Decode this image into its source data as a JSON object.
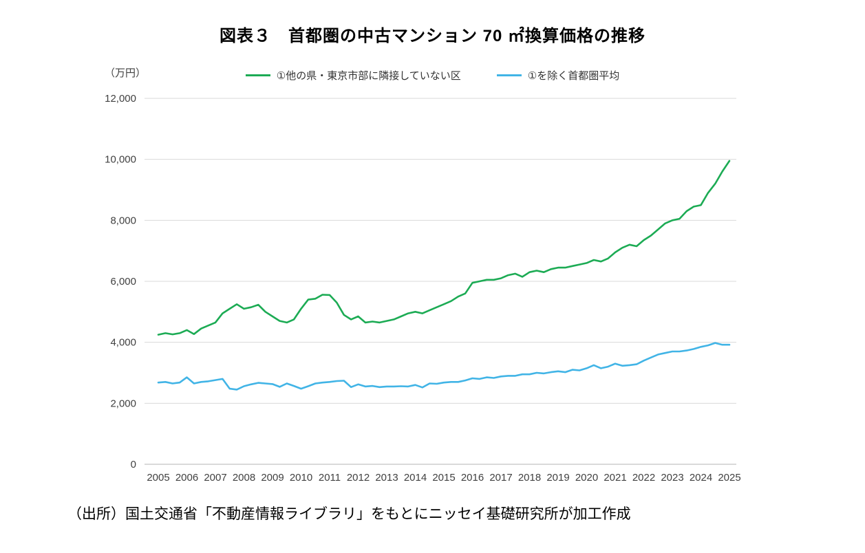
{
  "title": "図表３　首都圏の中古マンション 70 ㎡換算価格の推移",
  "source": "（出所）国土交通省「不動産情報ライブラリ」をもとにニッセイ基礎研究所が加工作成",
  "chart_data": {
    "type": "line",
    "title": "図表３　首都圏の中古マンション 70 ㎡換算価格の推移",
    "unit_label": "（万円）",
    "xlabel": "",
    "ylabel": "万円",
    "ylim": [
      0,
      12000
    ],
    "grid": true,
    "legend_position": "top",
    "yticks": [
      0,
      2000,
      4000,
      6000,
      8000,
      10000,
      12000
    ],
    "ytick_labels": [
      "0",
      "2,000",
      "4,000",
      "6,000",
      "8,000",
      "10,000",
      "12,000"
    ],
    "xticks": [
      2005,
      2006,
      2007,
      2008,
      2009,
      2010,
      2011,
      2012,
      2013,
      2014,
      2015,
      2016,
      2017,
      2018,
      2019,
      2020,
      2021,
      2022,
      2023,
      2024,
      2025
    ],
    "xtick_labels": [
      "2005",
      "2006",
      "2007",
      "2008",
      "2009",
      "2010",
      "2011",
      "2012",
      "2013",
      "2014",
      "2015",
      "2016",
      "2017",
      "2018",
      "2019",
      "2020",
      "2021",
      "2022",
      "2023",
      "2024",
      "2025"
    ],
    "x": [
      2005,
      2005.25,
      2005.5,
      2005.75,
      2006,
      2006.25,
      2006.5,
      2006.75,
      2007,
      2007.25,
      2007.5,
      2007.75,
      2008,
      2008.25,
      2008.5,
      2008.75,
      2009,
      2009.25,
      2009.5,
      2009.75,
      2010,
      2010.25,
      2010.5,
      2010.75,
      2011,
      2011.25,
      2011.5,
      2011.75,
      2012,
      2012.25,
      2012.5,
      2012.75,
      2013,
      2013.25,
      2013.5,
      2013.75,
      2014,
      2014.25,
      2014.5,
      2014.75,
      2015,
      2015.25,
      2015.5,
      2015.75,
      2016,
      2016.25,
      2016.5,
      2016.75,
      2017,
      2017.25,
      2017.5,
      2017.75,
      2018,
      2018.25,
      2018.5,
      2018.75,
      2019,
      2019.25,
      2019.5,
      2019.75,
      2020,
      2020.25,
      2020.5,
      2020.75,
      2021,
      2021.25,
      2021.5,
      2021.75,
      2022,
      2022.25,
      2022.5,
      2022.75,
      2023,
      2023.25,
      2023.5,
      2023.75,
      2024,
      2024.25,
      2024.5,
      2024.75,
      2025
    ],
    "series": [
      {
        "id": "non-adjacent-wards",
        "name": "①他の県・東京市部に隣接していない区",
        "color": "#1cab54",
        "values": [
          4250,
          4300,
          4260,
          4300,
          4400,
          4270,
          4450,
          4550,
          4650,
          4950,
          5100,
          5250,
          5100,
          5150,
          5230,
          5000,
          4850,
          4700,
          4650,
          4750,
          5100,
          5400,
          5430,
          5560,
          5550,
          5300,
          4900,
          4750,
          4850,
          4650,
          4680,
          4650,
          4700,
          4750,
          4850,
          4950,
          5000,
          4950,
          5050,
          5150,
          5250,
          5350,
          5500,
          5600,
          5950,
          6000,
          6050,
          6050,
          6100,
          6200,
          6250,
          6150,
          6300,
          6350,
          6300,
          6400,
          6450,
          6450,
          6500,
          6550,
          6600,
          6700,
          6650,
          6750,
          6950,
          7100,
          7200,
          7150,
          7350,
          7500,
          7700,
          7900,
          8000,
          8050,
          8300,
          8450,
          8500,
          8900,
          9200,
          9600,
          9950
        ]
      },
      {
        "id": "metro-average-excluding-1",
        "name": "①を除く首都圏平均",
        "color": "#41b4e6",
        "values": [
          2680,
          2700,
          2650,
          2680,
          2850,
          2650,
          2700,
          2720,
          2760,
          2800,
          2480,
          2450,
          2560,
          2620,
          2670,
          2650,
          2630,
          2540,
          2650,
          2570,
          2480,
          2560,
          2650,
          2680,
          2700,
          2730,
          2740,
          2530,
          2620,
          2550,
          2570,
          2530,
          2550,
          2550,
          2560,
          2550,
          2600,
          2520,
          2650,
          2640,
          2680,
          2700,
          2700,
          2750,
          2820,
          2800,
          2850,
          2830,
          2880,
          2900,
          2900,
          2950,
          2950,
          3000,
          2980,
          3020,
          3050,
          3020,
          3100,
          3080,
          3150,
          3250,
          3150,
          3200,
          3300,
          3230,
          3250,
          3280,
          3400,
          3500,
          3600,
          3650,
          3700,
          3700,
          3730,
          3780,
          3850,
          3900,
          3980,
          3920,
          3920
        ]
      }
    ]
  }
}
